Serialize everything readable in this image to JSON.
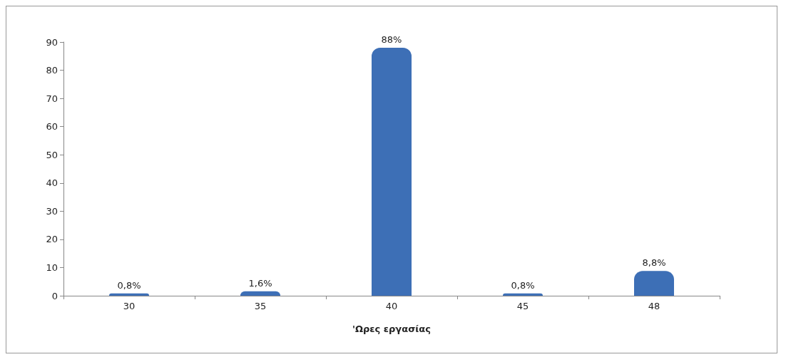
{
  "chart_data": {
    "type": "bar",
    "xlabel": "'Ωρες εργασίας",
    "categories": [
      "30",
      "35",
      "40",
      "45",
      "48"
    ],
    "values": [
      0.8,
      1.6,
      88,
      0.8,
      8.8
    ],
    "value_labels": [
      "0,8%",
      "1,6%",
      "88%",
      "0,8%",
      "8,8%"
    ],
    "color": "#3d6fb6",
    "ylim": [
      0,
      90
    ],
    "yticks": [
      0,
      10,
      20,
      30,
      40,
      50,
      60,
      70,
      80,
      90
    ],
    "grid": false
  }
}
